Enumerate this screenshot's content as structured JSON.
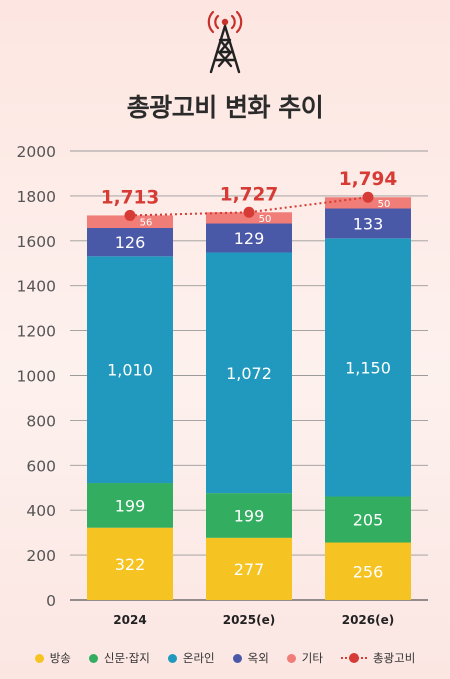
{
  "icons": {
    "header": "radio-tower-icon"
  },
  "title": "총광고비 변화 추이",
  "chart_data": {
    "type": "bar",
    "stacked": true,
    "categories": [
      "2024",
      "2025(e)",
      "2026(e)"
    ],
    "series": [
      {
        "name": "방송",
        "color": "#f5c322",
        "values": [
          322,
          277,
          256
        ]
      },
      {
        "name": "신문·잡지",
        "color": "#33ad60",
        "values": [
          199,
          199,
          205
        ]
      },
      {
        "name": "온라인",
        "color": "#2199bf",
        "values": [
          1010,
          1072,
          1150
        ]
      },
      {
        "name": "옥외",
        "color": "#4a58a8",
        "values": [
          126,
          129,
          133
        ]
      },
      {
        "name": "기타",
        "color": "#f07d77",
        "values": [
          56,
          50,
          50
        ]
      }
    ],
    "value_labels": [
      [
        "322",
        "277",
        "256"
      ],
      [
        "199",
        "199",
        "205"
      ],
      [
        "1,010",
        "1,072",
        "1,150"
      ],
      [
        "126",
        "129",
        "133"
      ],
      [
        "56",
        "50",
        "50"
      ]
    ],
    "total": {
      "name": "총광고비",
      "color": "#d63c35",
      "values": [
        1713,
        1727,
        1794
      ],
      "labels": [
        "1,713",
        "1,727",
        "1,794"
      ]
    },
    "ylim": [
      0,
      2000
    ],
    "yticks": [
      0,
      200,
      400,
      600,
      800,
      1000,
      1200,
      1400,
      1600,
      1800,
      2000
    ],
    "grid": true,
    "legend_position": "bottom"
  }
}
